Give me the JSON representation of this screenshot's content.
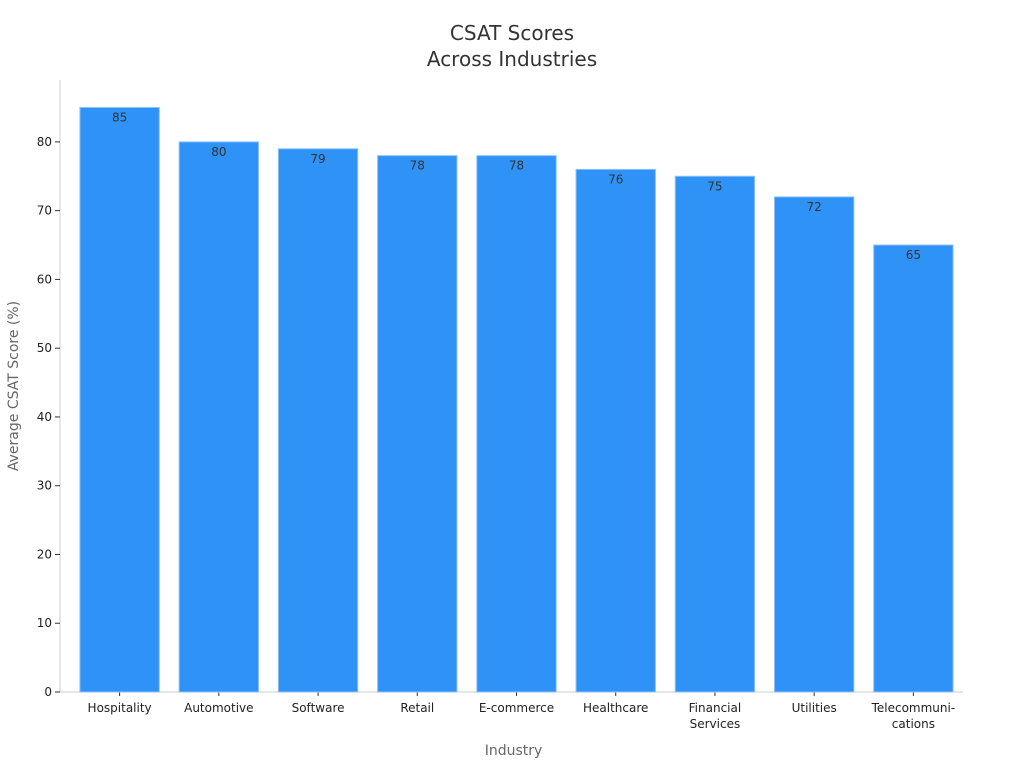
{
  "chart_data": {
    "type": "bar",
    "title": [
      "CSAT Scores",
      "Across Industries"
    ],
    "xlabel": "Industry",
    "ylabel": "Average CSAT Score (%)",
    "categories": [
      [
        "Hospitality"
      ],
      [
        "Automotive"
      ],
      [
        "Software"
      ],
      [
        "Retail"
      ],
      [
        "E-commerce"
      ],
      [
        "Healthcare"
      ],
      [
        "Financial",
        "Services"
      ],
      [
        "Utilities"
      ],
      [
        "Telecommuni-",
        "cations"
      ]
    ],
    "values": [
      85,
      80,
      79,
      78,
      78,
      76,
      75,
      72,
      65
    ],
    "ylim": [
      0,
      89
    ],
    "yticks": [
      0,
      10,
      20,
      30,
      40,
      50,
      60,
      70,
      80
    ],
    "grid": false,
    "bar_color": "#2f92f7",
    "bar_edge_color": "#8fc2f5",
    "axis_color": "#cccccc",
    "tick_color": "#333333"
  }
}
